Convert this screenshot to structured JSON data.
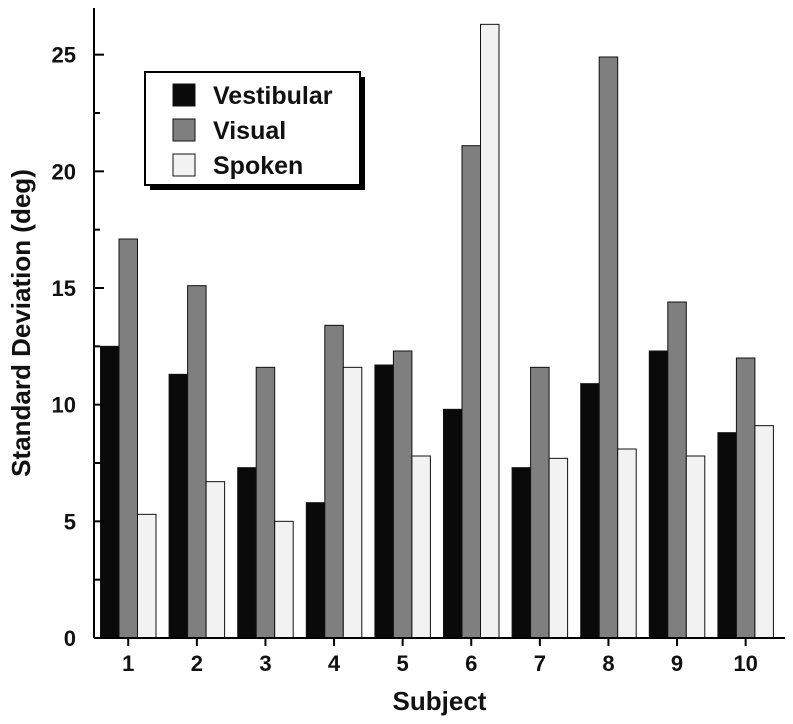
{
  "chart_data": {
    "type": "bar",
    "title": "",
    "xlabel": "Subject",
    "ylabel": "Standard Deviation (deg)",
    "ylim": [
      0,
      27
    ],
    "yticks": [
      0,
      5,
      10,
      15,
      20,
      25
    ],
    "categories": [
      "1",
      "2",
      "3",
      "4",
      "5",
      "6",
      "7",
      "8",
      "9",
      "10"
    ],
    "series": [
      {
        "name": "Vestibular",
        "color": "#0a0a0a",
        "values": [
          12.5,
          11.3,
          7.3,
          5.8,
          11.7,
          9.8,
          7.3,
          10.9,
          12.3,
          8.8
        ]
      },
      {
        "name": "Visual",
        "color": "#7f7f7f",
        "values": [
          17.1,
          15.1,
          11.6,
          13.4,
          12.3,
          21.1,
          11.6,
          24.9,
          14.4,
          12.0
        ]
      },
      {
        "name": "Spoken",
        "color": "#f2f2f2",
        "values": [
          5.3,
          6.7,
          5.0,
          11.6,
          7.8,
          26.3,
          7.7,
          8.1,
          7.8,
          9.1
        ]
      }
    ],
    "legend_position": "top-left",
    "grid": false
  }
}
